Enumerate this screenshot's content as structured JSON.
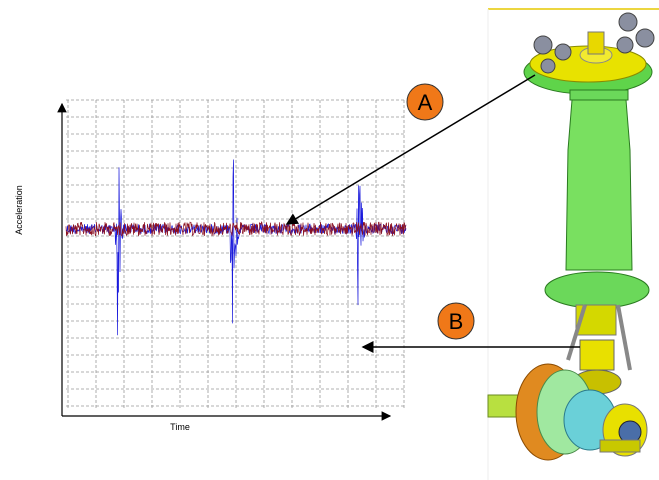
{
  "plot": {
    "y_axis_label": "Acceleration",
    "x_axis_label": "Time"
  },
  "callouts": [
    {
      "label": "A"
    },
    {
      "label": "B"
    }
  ]
}
